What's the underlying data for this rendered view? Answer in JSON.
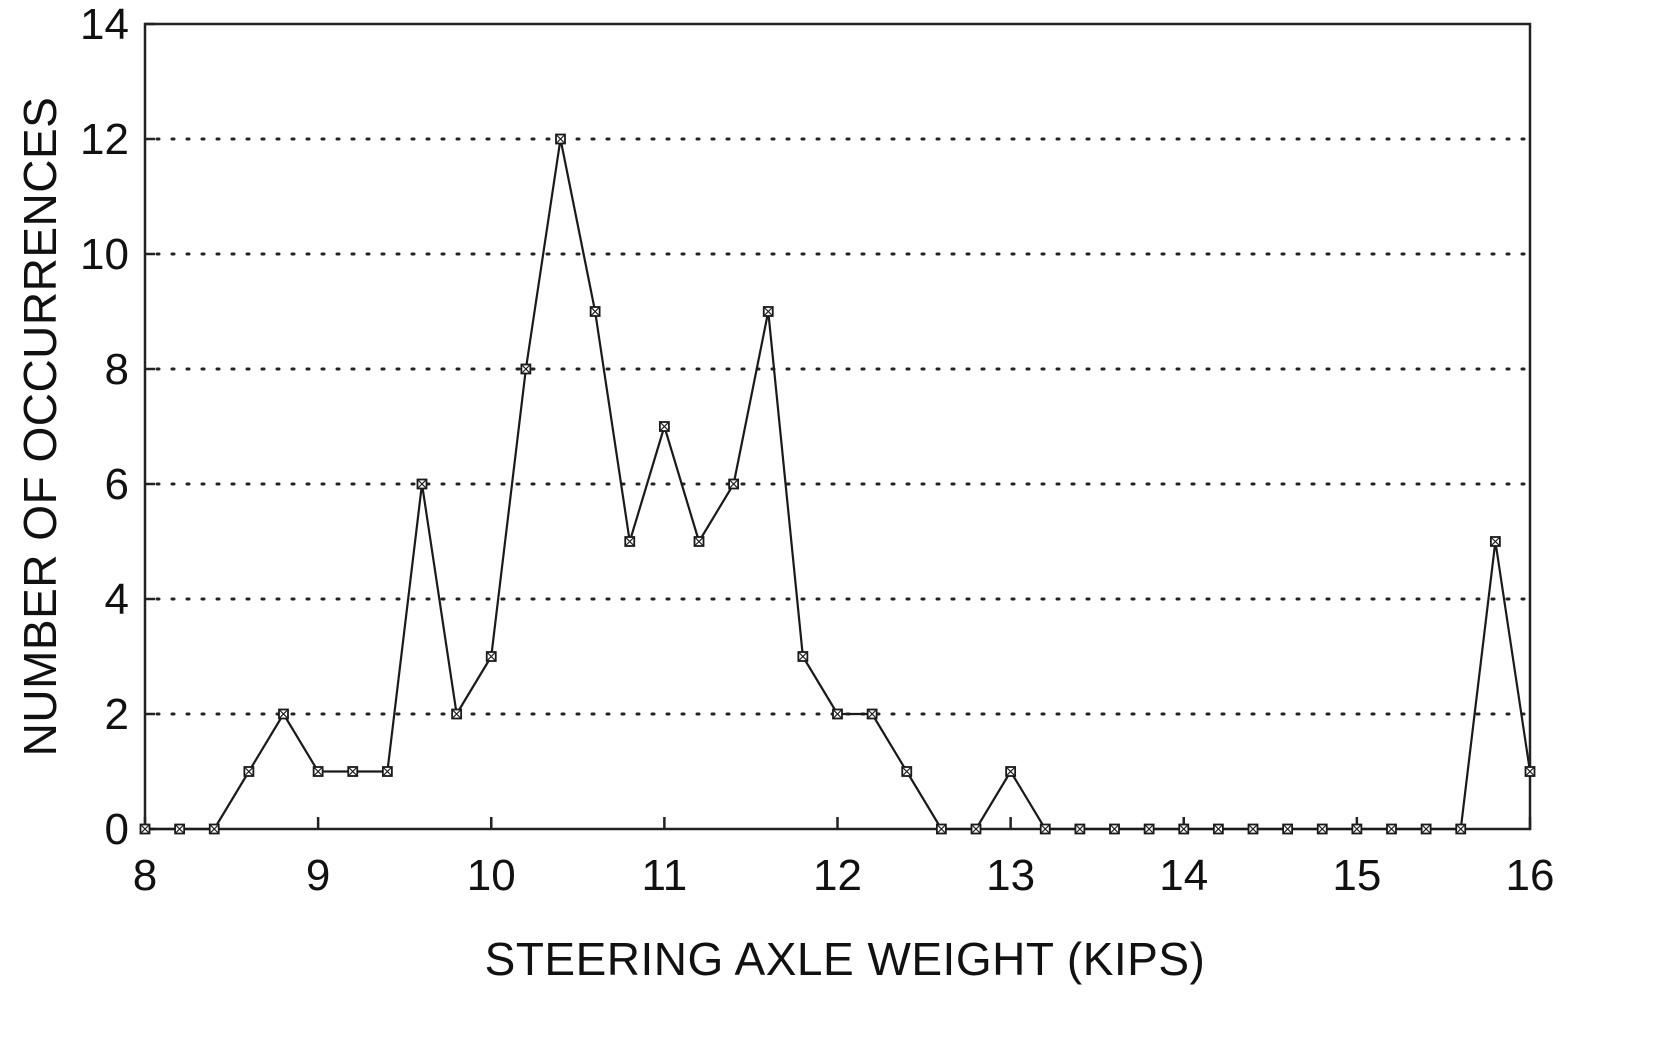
{
  "chart_data": {
    "type": "line",
    "title": "",
    "xlabel": "STEERING AXLE WEIGHT (KIPS)",
    "ylabel": "NUMBER OF OCCURRENCES",
    "xlim": [
      8,
      16
    ],
    "ylim": [
      0,
      14
    ],
    "x_ticks": [
      8,
      9,
      10,
      11,
      12,
      13,
      14,
      15,
      16
    ],
    "y_ticks": [
      0,
      2,
      4,
      6,
      8,
      10,
      12,
      14
    ],
    "grid": "horizontal-dotted",
    "legend": "none",
    "marker": "square-with-x",
    "colors": {
      "line": "#1a1a1a",
      "background": "#ffffff"
    },
    "series": [
      {
        "x": [
          8.0,
          8.2,
          8.4,
          8.6,
          8.8,
          9.0,
          9.2,
          9.4,
          9.6,
          9.8,
          10.0,
          10.2,
          10.4,
          10.6,
          10.8,
          11.0,
          11.2,
          11.4,
          11.6,
          11.8,
          12.0,
          12.2,
          12.4,
          12.6,
          12.8,
          13.0,
          13.2,
          13.4,
          13.6,
          13.8,
          14.0,
          14.2,
          14.4,
          14.6,
          14.8,
          15.0,
          15.2,
          15.4,
          15.6,
          15.8,
          16.0
        ],
        "values": [
          0,
          0,
          0,
          1,
          2,
          1,
          1,
          1,
          6,
          2,
          3,
          8,
          12,
          9,
          5,
          7,
          5,
          6,
          9,
          3,
          2,
          2,
          1,
          0,
          0,
          1,
          0,
          0,
          0,
          0,
          0,
          0,
          0,
          0,
          0,
          0,
          0,
          0,
          0,
          5,
          1
        ]
      }
    ]
  }
}
